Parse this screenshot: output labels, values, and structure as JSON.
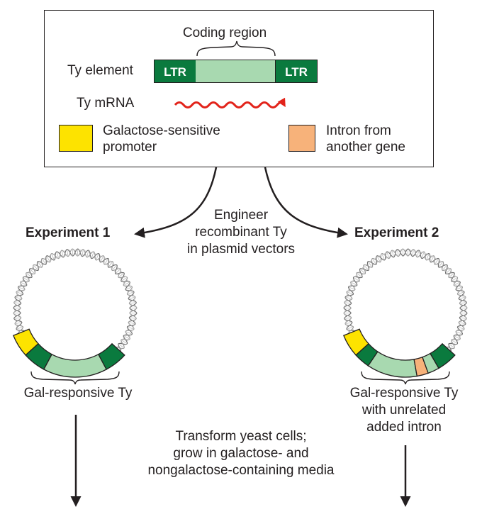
{
  "colors": {
    "ltr_green": "#0a7a3e",
    "coding_green": "#a8d9b0",
    "promoter_yellow": "#fde300",
    "intron_orange": "#f7b27a",
    "mrna_red": "#e2231a",
    "ink": "#231f20"
  },
  "legend": {
    "coding_region_label": "Coding region",
    "ty_element_label": "Ty element",
    "ltr_left": "LTR",
    "ltr_right": "LTR",
    "ty_mrna_label": "Ty mRNA",
    "promoter_label_line1": "Galactose-sensitive",
    "promoter_label_line2": "promoter",
    "intron_label_line1": "Intron from",
    "intron_label_line2": "another gene"
  },
  "center": {
    "engineer_line1": "Engineer",
    "engineer_line2": "recombinant Ty",
    "engineer_line3": "in plasmid vectors",
    "transform_line1": "Transform yeast cells;",
    "transform_line2": "grow in galactose- and",
    "transform_line3": "nongalactose-containing media"
  },
  "experiment1": {
    "title": "Experiment 1",
    "construct_label": "Gal-responsive Ty"
  },
  "experiment2": {
    "title": "Experiment 2",
    "construct_line1": "Gal-responsive Ty",
    "construct_line2": "with unrelated",
    "construct_line3": "added intron"
  }
}
